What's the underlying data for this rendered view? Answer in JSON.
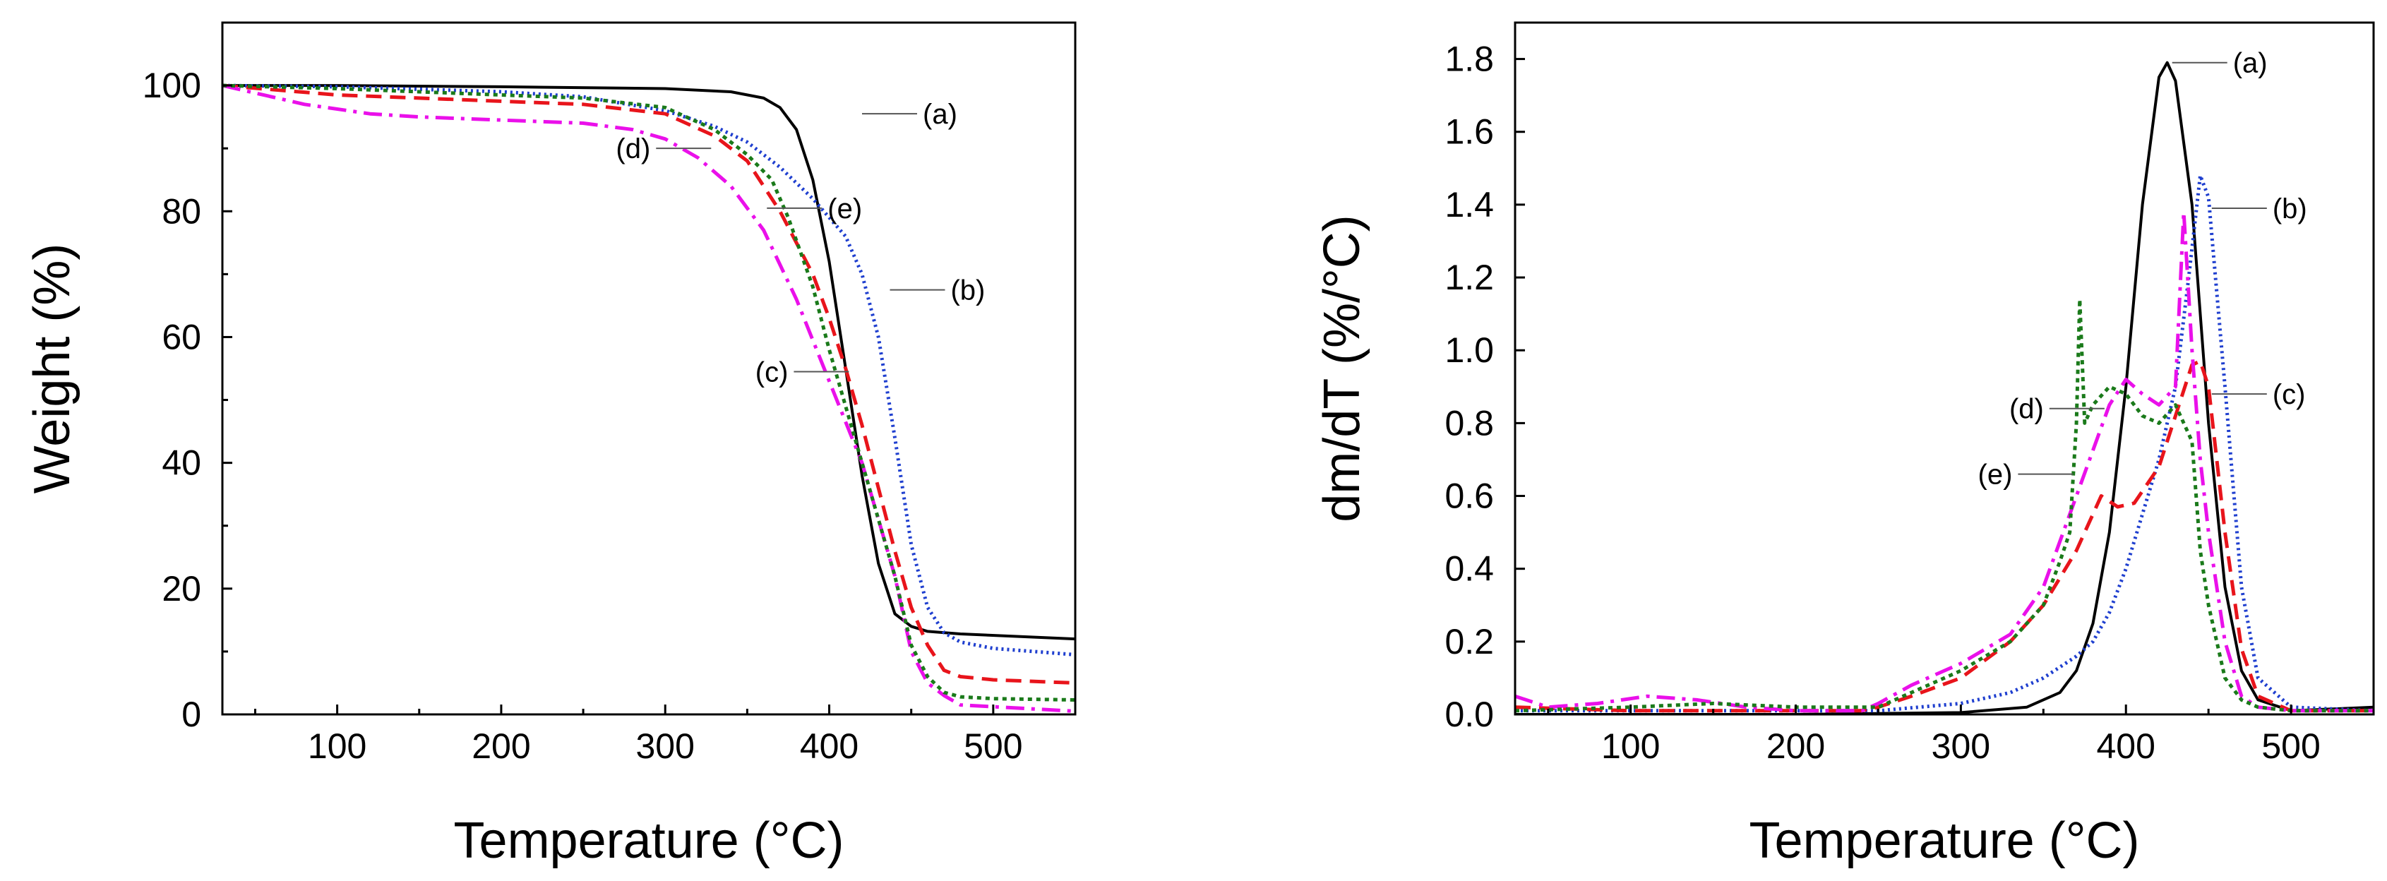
{
  "chart_data": [
    {
      "type": "line",
      "title": "",
      "xlabel": "Temperature (°C)",
      "ylabel": "Weight (%)",
      "xlim": [
        30,
        550
      ],
      "ylim": [
        0,
        110
      ],
      "xticks": [
        100,
        200,
        300,
        400,
        500
      ],
      "yticks": [
        0,
        20,
        40,
        60,
        80,
        100
      ],
      "grid": false,
      "legend": "none",
      "series": [
        {
          "name": "(a)",
          "color": "#000000",
          "style": "solid",
          "x": [
            30,
            100,
            200,
            300,
            340,
            360,
            370,
            380,
            390,
            400,
            410,
            420,
            430,
            440,
            450,
            460,
            480,
            550
          ],
          "y": [
            100,
            100,
            99.8,
            99.5,
            99,
            98,
            96.5,
            93,
            85,
            72,
            55,
            38,
            24,
            16,
            14,
            13.2,
            12.8,
            12
          ]
        },
        {
          "name": "(b)",
          "color": "#1f3fcf",
          "style": "dotted",
          "x": [
            30,
            100,
            200,
            250,
            300,
            330,
            350,
            370,
            390,
            410,
            420,
            430,
            440,
            450,
            460,
            470,
            480,
            500,
            550
          ],
          "y": [
            100,
            99.8,
            99,
            98.2,
            96,
            93.5,
            91,
            87,
            82,
            76,
            70,
            60,
            44,
            27,
            17,
            13,
            11.5,
            10.5,
            9.5
          ]
        },
        {
          "name": "(c)",
          "color": "#e8141b",
          "style": "dashed",
          "x": [
            30,
            100,
            200,
            250,
            300,
            330,
            350,
            370,
            390,
            400,
            410,
            420,
            430,
            440,
            450,
            460,
            470,
            480,
            500,
            550
          ],
          "y": [
            100,
            98.5,
            97.5,
            97,
            95.5,
            92,
            88,
            80,
            70,
            63,
            55,
            46,
            36,
            26,
            17,
            11,
            7,
            6,
            5.5,
            5
          ]
        },
        {
          "name": "(d)",
          "color": "#ea10ea",
          "style": "dashdot",
          "x": [
            30,
            80,
            120,
            150,
            200,
            250,
            280,
            300,
            320,
            340,
            360,
            380,
            400,
            420,
            440,
            450,
            460,
            470,
            480,
            550
          ],
          "y": [
            100,
            97,
            95.5,
            95,
            94.5,
            94,
            93,
            91.5,
            88.5,
            84,
            77,
            66,
            53,
            40,
            22,
            10,
            5,
            3,
            1.5,
            0.5
          ]
        },
        {
          "name": "(e)",
          "color": "#1a7a1a",
          "style": "dense-dotted",
          "x": [
            30,
            100,
            200,
            250,
            300,
            330,
            350,
            365,
            375,
            390,
            400,
            420,
            440,
            450,
            460,
            470,
            480,
            500,
            550
          ],
          "y": [
            100,
            99.5,
            98.5,
            98,
            96.5,
            93,
            89,
            85,
            79,
            68,
            58,
            40,
            22,
            11,
            6,
            3.5,
            2.8,
            2.5,
            2.3
          ]
        }
      ],
      "annotations": [
        {
          "text": "(a)",
          "series": "(a)",
          "x": 420,
          "y": 95.5
        },
        {
          "text": "(b)",
          "series": "(b)",
          "x": 437,
          "y": 67.5
        },
        {
          "text": "(c)",
          "series": "(c)",
          "x": 412,
          "y": 54.5
        },
        {
          "text": "(d)",
          "series": "(d)",
          "x": 328,
          "y": 90
        },
        {
          "text": "(e)",
          "series": "(e)",
          "x": 362,
          "y": 80.5
        }
      ]
    },
    {
      "type": "line",
      "title": "",
      "xlabel": "Temperature (°C)",
      "ylabel": "dm/dT (%/°C)",
      "xlim": [
        30,
        550
      ],
      "ylim": [
        0,
        1.9
      ],
      "xticks": [
        100,
        200,
        300,
        400,
        500
      ],
      "yticks": [
        0.0,
        0.2,
        0.4,
        0.6,
        0.8,
        1.0,
        1.2,
        1.4,
        1.6,
        1.8
      ],
      "grid": false,
      "legend": "none",
      "series": [
        {
          "name": "(a)",
          "color": "#000000",
          "style": "solid",
          "x": [
            30,
            200,
            300,
            340,
            360,
            370,
            380,
            390,
            400,
            410,
            420,
            425,
            430,
            440,
            450,
            460,
            470,
            480,
            500,
            550
          ],
          "y": [
            0,
            0,
            0.005,
            0.02,
            0.06,
            0.12,
            0.25,
            0.5,
            0.9,
            1.4,
            1.75,
            1.79,
            1.74,
            1.4,
            0.8,
            0.35,
            0.12,
            0.04,
            0.01,
            0.02
          ]
        },
        {
          "name": "(b)",
          "color": "#1f3fcf",
          "style": "dotted",
          "x": [
            30,
            100,
            200,
            250,
            300,
            330,
            350,
            370,
            380,
            390,
            400,
            410,
            420,
            430,
            438,
            445,
            450,
            460,
            470,
            480,
            500,
            550
          ],
          "y": [
            0.01,
            0.01,
            0.01,
            0.01,
            0.03,
            0.06,
            0.1,
            0.16,
            0.2,
            0.28,
            0.4,
            0.55,
            0.7,
            0.9,
            1.2,
            1.48,
            1.42,
            0.9,
            0.35,
            0.1,
            0.02,
            0.01
          ]
        },
        {
          "name": "(c)",
          "color": "#e8141b",
          "style": "dashed",
          "x": [
            30,
            100,
            200,
            240,
            250,
            270,
            300,
            330,
            350,
            370,
            385,
            395,
            405,
            420,
            430,
            440,
            445,
            450,
            460,
            470,
            480,
            500,
            550
          ],
          "y": [
            0.02,
            0.01,
            0.01,
            0.01,
            0.02,
            0.05,
            0.1,
            0.2,
            0.3,
            0.45,
            0.6,
            0.57,
            0.58,
            0.68,
            0.82,
            0.96,
            0.97,
            0.9,
            0.5,
            0.18,
            0.05,
            0.01,
            0.01
          ]
        },
        {
          "name": "(d)",
          "color": "#ea10ea",
          "style": "dashdot",
          "x": [
            30,
            50,
            80,
            110,
            140,
            170,
            200,
            240,
            250,
            270,
            300,
            330,
            350,
            370,
            390,
            400,
            410,
            420,
            430,
            435,
            440,
            445,
            450,
            460,
            470,
            480,
            500,
            550
          ],
          "y": [
            0.05,
            0.02,
            0.03,
            0.05,
            0.04,
            0.02,
            0.01,
            0.01,
            0.03,
            0.08,
            0.14,
            0.22,
            0.35,
            0.6,
            0.85,
            0.92,
            0.88,
            0.85,
            0.9,
            1.38,
            1.0,
            0.7,
            0.5,
            0.2,
            0.05,
            0.02,
            0.01,
            0.01
          ]
        },
        {
          "name": "(e)",
          "color": "#1a7a1a",
          "style": "dense-dotted",
          "x": [
            30,
            100,
            150,
            200,
            250,
            270,
            300,
            330,
            350,
            360,
            366,
            370,
            372,
            375,
            380,
            390,
            400,
            410,
            420,
            430,
            440,
            445,
            450,
            460,
            470,
            480,
            500,
            550
          ],
          "y": [
            0.01,
            0.02,
            0.03,
            0.02,
            0.02,
            0.06,
            0.12,
            0.2,
            0.3,
            0.42,
            0.5,
            0.8,
            1.14,
            0.8,
            0.85,
            0.9,
            0.88,
            0.82,
            0.8,
            0.85,
            0.75,
            0.45,
            0.3,
            0.1,
            0.04,
            0.02,
            0.01,
            0.01
          ]
        }
      ],
      "annotations": [
        {
          "text": "(a)",
          "series": "(a)",
          "x": 428,
          "y": 1.79
        },
        {
          "text": "(b)",
          "series": "(b)",
          "x": 452,
          "y": 1.39
        },
        {
          "text": "(c)",
          "series": "(c)",
          "x": 452,
          "y": 0.88
        },
        {
          "text": "(d)",
          "series": "(d)",
          "x": 387,
          "y": 0.84
        },
        {
          "text": "(e)",
          "series": "(e)",
          "x": 368,
          "y": 0.66
        }
      ]
    }
  ]
}
